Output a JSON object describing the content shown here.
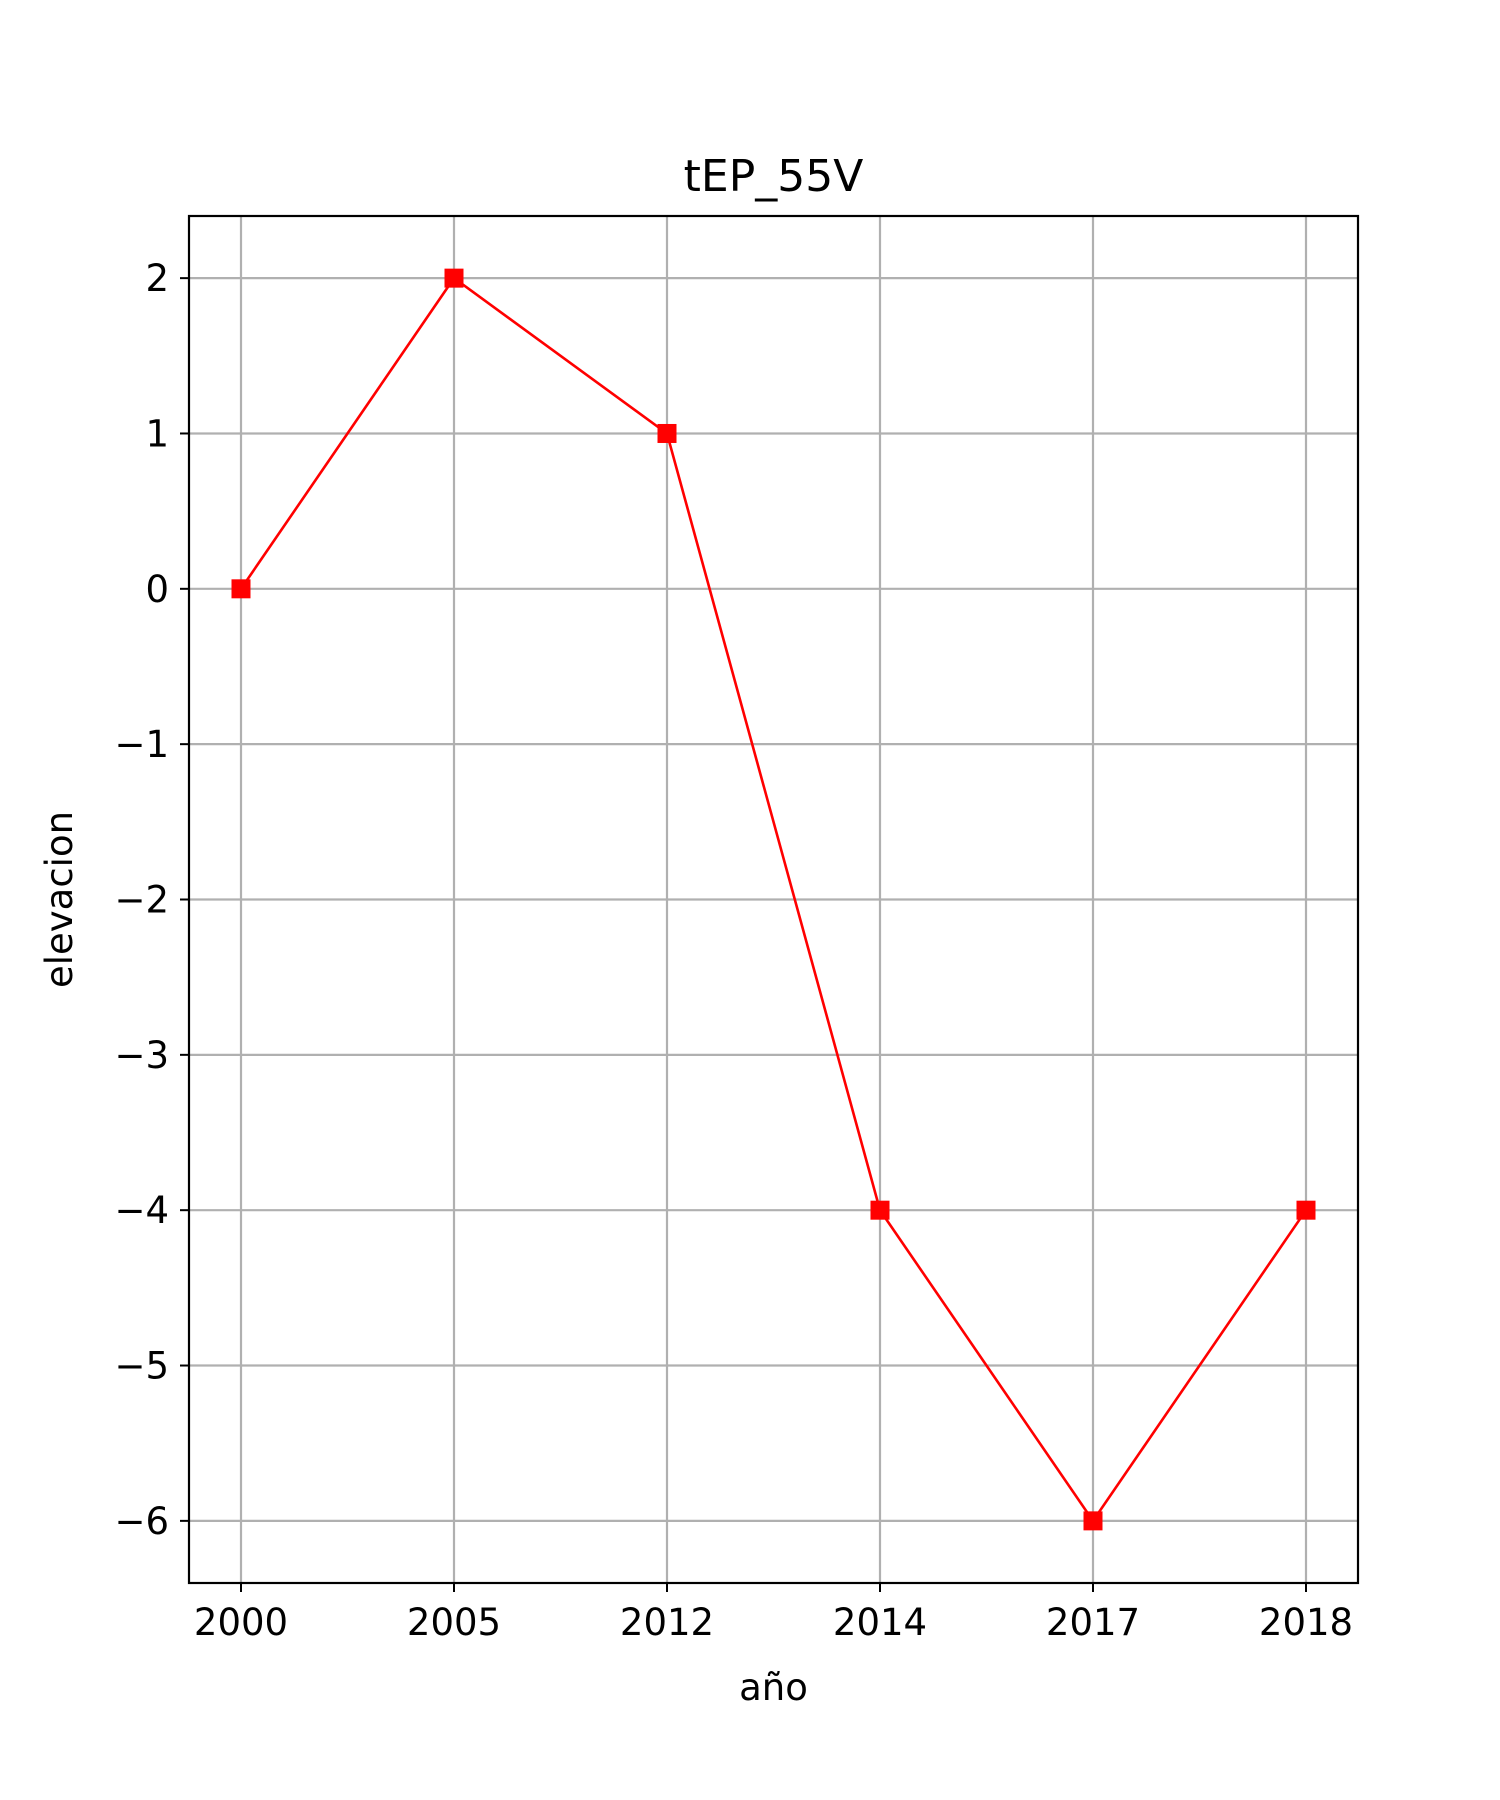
{
  "chart_data": {
    "type": "line",
    "title": "tEP_55V",
    "xlabel": "año",
    "ylabel": "elevacion",
    "categories": [
      "2000",
      "2005",
      "2012",
      "2014",
      "2017",
      "2018"
    ],
    "series": [
      {
        "values": [
          0,
          2,
          1,
          -4,
          -6,
          -4
        ],
        "color": "#ff0000",
        "marker": "square"
      }
    ],
    "yticks": [
      2,
      1,
      0,
      -1,
      -2,
      -3,
      -4,
      -5,
      -6
    ],
    "ytick_labels": [
      "2",
      "1",
      "0",
      "−1",
      "−2",
      "−3",
      "−4",
      "−5",
      "−6"
    ],
    "ylim": [
      -6.4,
      2.4
    ],
    "grid": true
  }
}
